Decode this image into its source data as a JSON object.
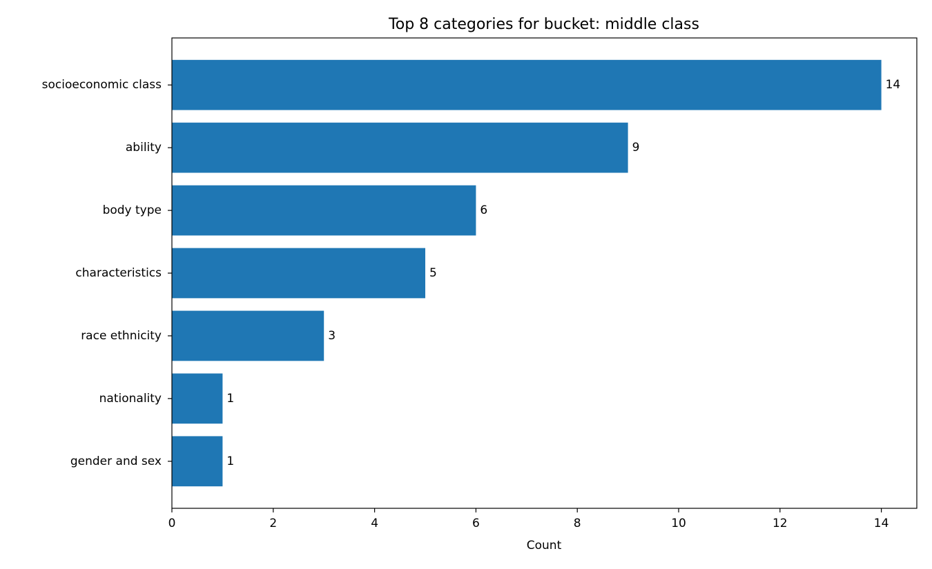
{
  "chart_data": {
    "type": "bar",
    "orientation": "horizontal",
    "title": "Top 8 categories for bucket: middle class",
    "xlabel": "Count",
    "ylabel": "",
    "categories": [
      "socioeconomic class",
      "ability",
      "body type",
      "characteristics",
      "race ethnicity",
      "nationality",
      "gender and sex"
    ],
    "values": [
      14,
      9,
      6,
      5,
      3,
      1,
      1
    ],
    "xlim": [
      0,
      14.7
    ],
    "xticks": [
      0,
      2,
      4,
      6,
      8,
      10,
      12,
      14
    ],
    "bar_color": "#1f77b4",
    "grid": false,
    "legend": "none",
    "data_labels": true
  }
}
